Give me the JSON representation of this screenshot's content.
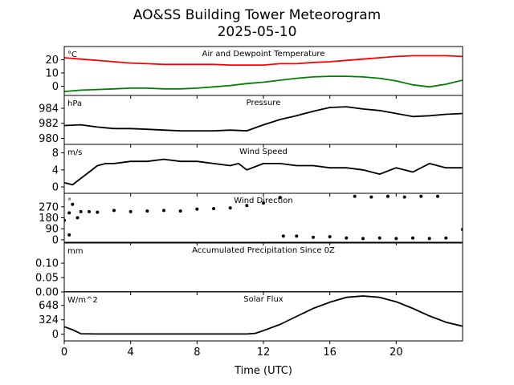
{
  "title": {
    "line1": "AO&SS Building Tower Meteorogram",
    "line2": "2025-05-10"
  },
  "xlabel": "Time (UTC)",
  "xlim": [
    0,
    24
  ],
  "xticks": [
    0,
    4,
    8,
    12,
    16,
    20
  ],
  "xtick_labels": [
    "0",
    "4",
    "8",
    "12",
    "16",
    "20"
  ],
  "chart_data": [
    {
      "type": "line",
      "title": "Air and Dewpoint Temperature",
      "unit": "°C",
      "ylim": [
        -7,
        30
      ],
      "yticks": [
        0,
        10,
        20
      ],
      "ytick_labels": [
        "0",
        "10",
        "20"
      ],
      "series": [
        {
          "color": "#ff0000",
          "x": [
            0,
            1,
            2,
            3,
            4,
            5,
            6,
            7,
            8,
            9,
            10,
            11,
            12,
            13,
            14,
            15,
            16,
            17,
            18,
            19,
            20,
            21,
            22,
            23,
            24
          ],
          "values": [
            21.5,
            20.5,
            19.5,
            18.5,
            17.5,
            17,
            16.5,
            16.5,
            16.5,
            16.5,
            16,
            16,
            16,
            17,
            17,
            18,
            18.5,
            19.5,
            20.5,
            21.5,
            22.5,
            23,
            23,
            23,
            22.5
          ]
        },
        {
          "color": "#008000",
          "x": [
            0,
            1,
            2,
            3,
            4,
            5,
            6,
            7,
            8,
            9,
            10,
            11,
            12,
            13,
            14,
            15,
            16,
            17,
            18,
            19,
            20,
            21,
            22,
            23,
            24
          ],
          "values": [
            -4,
            -3,
            -2.5,
            -2,
            -1.5,
            -1.5,
            -2,
            -2,
            -1.5,
            -0.5,
            0.5,
            2,
            3,
            4.5,
            6,
            7,
            7.5,
            7.5,
            7,
            6,
            4,
            1,
            -0.5,
            1.5,
            4.5
          ]
        }
      ]
    },
    {
      "type": "line",
      "title": "Pressure",
      "unit": "hPa",
      "ylim": [
        979.2,
        985.7
      ],
      "yticks": [
        980,
        982,
        984
      ],
      "ytick_labels": [
        "980",
        "982",
        "984"
      ],
      "series": [
        {
          "color": "#000000",
          "x": [
            0,
            1,
            2,
            3,
            4,
            5,
            6,
            7,
            8,
            9,
            10,
            11,
            12,
            13,
            14,
            15,
            16,
            17,
            18,
            19,
            20,
            21,
            22,
            23,
            24
          ],
          "values": [
            981.7,
            981.8,
            981.5,
            981.3,
            981.3,
            981.2,
            981.1,
            981,
            981,
            981,
            981.1,
            981,
            981.8,
            982.5,
            983,
            983.6,
            984.1,
            984.2,
            983.9,
            983.7,
            983.3,
            982.9,
            983,
            983.2,
            983.3
          ]
        }
      ]
    },
    {
      "type": "line",
      "title": "Wind Speed",
      "unit": "m/s",
      "ylim": [
        -1.5,
        10
      ],
      "yticks": [
        0,
        4,
        8
      ],
      "ytick_labels": [
        "0",
        "4",
        "8"
      ],
      "series": [
        {
          "color": "#000000",
          "x": [
            0,
            0.5,
            1,
            1.5,
            2,
            2.5,
            3,
            4,
            5,
            6,
            7,
            8,
            9,
            10,
            10.5,
            11,
            12,
            13,
            14,
            15,
            16,
            17,
            18,
            19,
            20,
            21,
            22,
            23,
            24
          ],
          "values": [
            1,
            0.5,
            2,
            3.5,
            5,
            5.5,
            5.5,
            6,
            6,
            6.5,
            6,
            6,
            5.5,
            5,
            5.5,
            4,
            5.5,
            5.5,
            5,
            5,
            4.5,
            4.5,
            4,
            3,
            4.5,
            3.5,
            5.5,
            4.5,
            4.5
          ]
        }
      ]
    },
    {
      "type": "scatter",
      "title": "Wind Direction",
      "unit": "°",
      "ylim": [
        -20,
        380
      ],
      "yticks": [
        0,
        90,
        180,
        270
      ],
      "ytick_labels": [
        "0",
        "90",
        "180",
        "270"
      ],
      "series": [
        {
          "color": "#000000",
          "x": [
            0,
            0.3,
            0.5,
            0.8,
            1,
            1.5,
            2,
            3,
            4,
            5,
            6,
            7,
            8,
            9,
            10,
            11,
            12,
            13,
            13.2,
            14,
            15,
            16,
            17,
            18,
            19,
            20,
            21,
            22,
            23,
            24,
            0.3,
            17.5,
            18.5,
            19.5,
            20.5,
            21.5,
            22.5
          ],
          "values": [
            160,
            220,
            290,
            180,
            230,
            230,
            225,
            240,
            230,
            235,
            240,
            235,
            250,
            255,
            260,
            280,
            300,
            345,
            30,
            30,
            20,
            25,
            15,
            10,
            15,
            10,
            15,
            10,
            15,
            85,
            40,
            355,
            350,
            355,
            350,
            355,
            355
          ]
        }
      ]
    },
    {
      "type": "line",
      "title": "Accumulated Precipitation Since 0Z",
      "unit": "mm",
      "ylim": [
        0,
        0.17
      ],
      "yticks": [
        0,
        0.05,
        0.1
      ],
      "ytick_labels": [
        "0.00",
        "0.05",
        "0.10"
      ],
      "series": [
        {
          "color": "#000000",
          "x": [
            0,
            24
          ],
          "values": [
            0,
            0
          ]
        }
      ]
    },
    {
      "type": "line",
      "title": "Solar Flux",
      "unit": "W/m^2",
      "ylim": [
        -150,
        950
      ],
      "yticks": [
        0,
        324,
        648
      ],
      "ytick_labels": [
        "0",
        "324",
        "648"
      ],
      "series": [
        {
          "color": "#000000",
          "x": [
            0,
            0.5,
            1,
            2,
            4,
            6,
            8,
            10,
            11,
            11.5,
            12,
            13,
            14,
            15,
            16,
            17,
            18,
            19,
            20,
            21,
            22,
            23,
            24
          ],
          "values": [
            170,
            100,
            10,
            5,
            5,
            5,
            5,
            5,
            5,
            20,
            80,
            220,
            400,
            580,
            720,
            830,
            860,
            830,
            730,
            580,
            410,
            270,
            180
          ]
        }
      ]
    }
  ]
}
